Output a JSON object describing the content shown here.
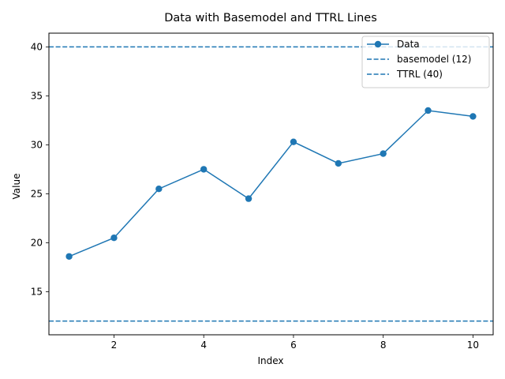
{
  "chart_data": {
    "type": "line",
    "title": "Data with Basemodel and TTRL Lines",
    "xlabel": "Index",
    "ylabel": "Value",
    "xlim": [
      0.55,
      10.45
    ],
    "ylim": [
      10.6,
      41.4
    ],
    "xticks": [
      2,
      4,
      6,
      8,
      10
    ],
    "yticks": [
      15,
      20,
      25,
      30,
      35,
      40
    ],
    "grid": false,
    "legend_position": "top-right",
    "series": [
      {
        "name": "Data",
        "style": "line-with-markers",
        "color": "#1f77b4",
        "x": [
          1,
          2,
          3,
          4,
          5,
          6,
          7,
          8,
          9,
          10
        ],
        "y": [
          18.6,
          20.5,
          25.5,
          27.5,
          24.5,
          30.3,
          28.1,
          29.1,
          33.5,
          32.9
        ]
      }
    ],
    "reference_lines": [
      {
        "name": "basemodel (12)",
        "y": 12,
        "style": "dashed",
        "color": "#1f77b4"
      },
      {
        "name": "TTRL (40)",
        "y": 40,
        "style": "dashed",
        "color": "#1f77b4"
      }
    ]
  }
}
